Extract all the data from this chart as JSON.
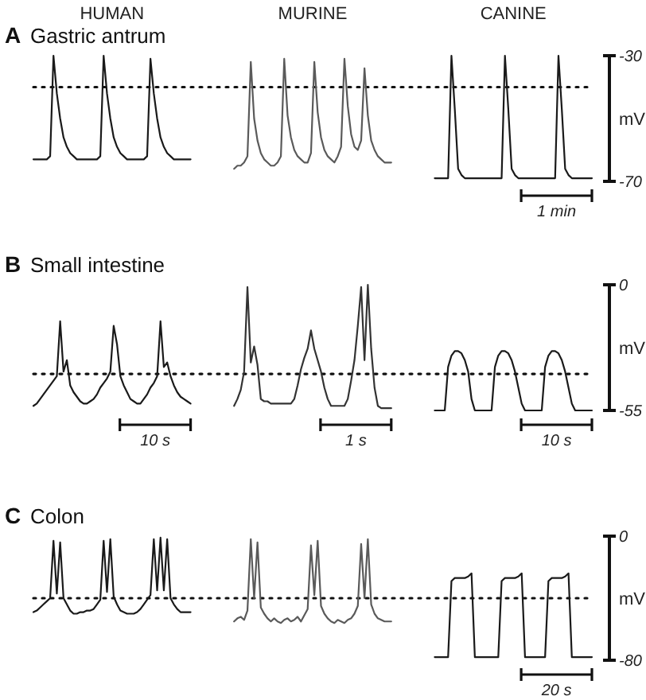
{
  "chart_data": [
    {
      "type": "line",
      "title": "Gastric antrum",
      "annotations": [
        "A",
        "1 min"
      ],
      "ylabel": "mV",
      "ylim": [
        -70,
        -30
      ],
      "yticks": [
        -30,
        -70
      ],
      "ref_lines": [
        {
          "axis": "y",
          "value": -40,
          "line_style": "dotted"
        }
      ],
      "categories": [
        null,
        null,
        null,
        null,
        null,
        null,
        null,
        null,
        null,
        null,
        null,
        null,
        null,
        null,
        null,
        null,
        null,
        null,
        null,
        null,
        null,
        null,
        null,
        null,
        null,
        null,
        null,
        null,
        null,
        null,
        null,
        null,
        null,
        null,
        null,
        null,
        null,
        null,
        null,
        null,
        null,
        null,
        null,
        null,
        null,
        null,
        null,
        null,
        null,
        null,
        null,
        null,
        null,
        null,
        null,
        null,
        null,
        null,
        null,
        null,
        null,
        null,
        null,
        null,
        null,
        null,
        null,
        null,
        null,
        null,
        null,
        null,
        null,
        null,
        null,
        null,
        null,
        null,
        null,
        null,
        null,
        null,
        null,
        null,
        null,
        null,
        null,
        null,
        null,
        null,
        null,
        null,
        null,
        null,
        null,
        null,
        null,
        null,
        null,
        null,
        null,
        null,
        null,
        null,
        null,
        null,
        null,
        null,
        null,
        null,
        null,
        null,
        null,
        null,
        null,
        null,
        null,
        null,
        null,
        null,
        null,
        null,
        null,
        null,
        null,
        null,
        null,
        null,
        null,
        null,
        null,
        null,
        null,
        null,
        null,
        null,
        null,
        null,
        null,
        null,
        null,
        null,
        null,
        null,
        null,
        null,
        null,
        null,
        null,
        null,
        null,
        null,
        null,
        null,
        null,
        null,
        null,
        null,
        null,
        null,
        null,
        null,
        null,
        null,
        null,
        null,
        null,
        null
      ],
      "series": [
        {
          "name": "HUMAN",
          "color": "#1a1a1a",
          "values": [
            -63,
            -63,
            -63,
            -63,
            -63,
            -62,
            -30,
            -42,
            -50,
            -56,
            -59,
            -61,
            -62,
            -63,
            -63,
            -63,
            -63,
            -63,
            -63,
            -63,
            -62,
            -30,
            -42,
            -50,
            -56,
            -59,
            -61,
            -62,
            -63,
            -63,
            -63,
            -63,
            -63,
            -63,
            -62,
            -31,
            -42,
            -50,
            -56,
            -59,
            -61,
            -62,
            -63,
            -63,
            -63,
            -63,
            -63,
            -63,
            null,
            null,
            null,
            null,
            null,
            null,
            null,
            null,
            null,
            null,
            null,
            null,
            null,
            null,
            null,
            null,
            null,
            null,
            null,
            null,
            null,
            null,
            null,
            null,
            null,
            null,
            null,
            null,
            null,
            null,
            null,
            null,
            null,
            null,
            null,
            null,
            null,
            null,
            null,
            null,
            null,
            null,
            null,
            null,
            null,
            null,
            null,
            null,
            null,
            null,
            null,
            null,
            null,
            null,
            null,
            null,
            null,
            null,
            null,
            null,
            null,
            null,
            null,
            null,
            null,
            null,
            null,
            null,
            null,
            null,
            null,
            null,
            null,
            null,
            null,
            null,
            null,
            null,
            null,
            null,
            null,
            null,
            null,
            null,
            null,
            null,
            null,
            null,
            null,
            null,
            null,
            null,
            null,
            null,
            null,
            null,
            null,
            null,
            null,
            null,
            null,
            null,
            null,
            null,
            null,
            null,
            null,
            null,
            null,
            null,
            null,
            null,
            null,
            null,
            null,
            null,
            null,
            null,
            null,
            null
          ]
        },
        {
          "name": "MURINE",
          "color": "#5a5a5a",
          "values": [
            null,
            null,
            null,
            null,
            null,
            null,
            null,
            null,
            null,
            null,
            null,
            null,
            null,
            null,
            null,
            null,
            null,
            null,
            null,
            null,
            null,
            null,
            null,
            null,
            null,
            null,
            null,
            null,
            null,
            null,
            null,
            null,
            null,
            null,
            null,
            null,
            null,
            null,
            null,
            null,
            null,
            null,
            null,
            null,
            null,
            null,
            null,
            null,
            null,
            null,
            null,
            null,
            null,
            null,
            null,
            null,
            null,
            null,
            null,
            null,
            -66,
            -65,
            -65,
            -64,
            -62,
            -32,
            -50,
            -57,
            -61,
            -63,
            -64,
            -65,
            -65,
            -64,
            -62,
            -31,
            -49,
            -56,
            -60,
            -62,
            -63,
            -64,
            -64,
            -61,
            -32,
            -48,
            -56,
            -60,
            -62,
            -63,
            -64,
            -62,
            -59,
            -31,
            -46,
            -55,
            -59,
            -60,
            -57,
            -34,
            -49,
            -57,
            -60,
            -62,
            -63,
            -64,
            -64,
            -64,
            null,
            null,
            null,
            null,
            null,
            null,
            null,
            null,
            null,
            null,
            null,
            null,
            null,
            null,
            null,
            null,
            null,
            null,
            null,
            null,
            null,
            null,
            null,
            null,
            null,
            null,
            null,
            null,
            null,
            null,
            null,
            null,
            null,
            null,
            null,
            null,
            null,
            null,
            null,
            null,
            null,
            null,
            null,
            null,
            null,
            null,
            null,
            null,
            null,
            null,
            null,
            null,
            null,
            null,
            null,
            null,
            null,
            null,
            null,
            null
          ]
        },
        {
          "name": "CANINE",
          "color": "#1a1a1a",
          "values": [
            null,
            null,
            null,
            null,
            null,
            null,
            null,
            null,
            null,
            null,
            null,
            null,
            null,
            null,
            null,
            null,
            null,
            null,
            null,
            null,
            null,
            null,
            null,
            null,
            null,
            null,
            null,
            null,
            null,
            null,
            null,
            null,
            null,
            null,
            null,
            null,
            null,
            null,
            null,
            null,
            null,
            null,
            null,
            null,
            null,
            null,
            null,
            null,
            null,
            null,
            null,
            null,
            null,
            null,
            null,
            null,
            null,
            null,
            null,
            null,
            null,
            null,
            null,
            null,
            null,
            null,
            null,
            null,
            null,
            null,
            null,
            null,
            null,
            null,
            null,
            null,
            null,
            null,
            null,
            null,
            null,
            null,
            null,
            null,
            null,
            null,
            null,
            null,
            null,
            null,
            null,
            null,
            null,
            null,
            null,
            null,
            null,
            null,
            null,
            null,
            null,
            null,
            null,
            null,
            null,
            null,
            null,
            null,
            null,
            null,
            null,
            null,
            null,
            null,
            null,
            null,
            null,
            null,
            null,
            null,
            -69,
            -69,
            -69,
            -69,
            -69,
            -30,
            -47,
            -66,
            -68,
            -69,
            -69,
            -69,
            -69,
            -69,
            -69,
            -69,
            -69,
            -69,
            -69,
            -69,
            -69,
            -30,
            -47,
            -66,
            -68,
            -69,
            -69,
            -69,
            -69,
            -69,
            -69,
            -69,
            -69,
            -69,
            -69,
            -69,
            -69,
            -30,
            -47,
            -66,
            -68,
            -69,
            -69,
            -69,
            -69,
            -69,
            -69,
            -69
          ]
        }
      ]
    },
    {
      "type": "line",
      "title": "Small intestine",
      "annotations": [
        "B",
        "10 s",
        "1 s",
        "10 s"
      ],
      "ylabel": "mV",
      "ylim": [
        -55,
        0
      ],
      "yticks": [
        0,
        -55
      ],
      "ref_lines": [
        {
          "axis": "y",
          "value": -39,
          "line_style": "dotted"
        }
      ],
      "categories": [
        null,
        null,
        null,
        null,
        null,
        null,
        null,
        null,
        null,
        null,
        null,
        null,
        null,
        null,
        null,
        null,
        null,
        null,
        null,
        null,
        null,
        null,
        null,
        null,
        null,
        null,
        null,
        null,
        null,
        null,
        null,
        null,
        null,
        null,
        null,
        null,
        null,
        null,
        null,
        null,
        null,
        null,
        null,
        null,
        null,
        null,
        null,
        null,
        null,
        null,
        null,
        null,
        null,
        null,
        null,
        null,
        null,
        null,
        null,
        null,
        null,
        null,
        null,
        null,
        null,
        null,
        null,
        null,
        null,
        null,
        null,
        null,
        null,
        null,
        null,
        null,
        null,
        null,
        null,
        null,
        null,
        null,
        null,
        null,
        null,
        null,
        null,
        null,
        null,
        null,
        null,
        null,
        null,
        null,
        null,
        null,
        null,
        null,
        null,
        null,
        null,
        null,
        null,
        null,
        null,
        null,
        null,
        null,
        null,
        null,
        null,
        null,
        null,
        null,
        null,
        null,
        null,
        null,
        null,
        null,
        null,
        null,
        null,
        null,
        null,
        null,
        null,
        null,
        null,
        null,
        null,
        null,
        null,
        null,
        null,
        null,
        null,
        null,
        null,
        null,
        null,
        null,
        null,
        null,
        null,
        null,
        null,
        null,
        null,
        null,
        null,
        null,
        null,
        null,
        null,
        null,
        null,
        null,
        null,
        null,
        null,
        null,
        null,
        null,
        null,
        null,
        null,
        null
      ],
      "series": [
        {
          "color": "#1a1a1a",
          "values": [
            -53,
            -52,
            -50,
            -48,
            -46,
            -44,
            -42,
            -40,
            -16,
            -38,
            -33,
            -44,
            -47,
            -49,
            -51,
            -52,
            -52,
            -51,
            -50,
            -48,
            -45,
            -43,
            -41,
            -38,
            -18,
            -26,
            -40,
            -44,
            -47,
            -50,
            -51,
            -52,
            -52,
            -50,
            -48,
            -45,
            -43,
            -40,
            -16,
            -36,
            -34,
            -40,
            -44,
            -47,
            -49,
            -50,
            -51,
            -52,
            null,
            null,
            null,
            null,
            null,
            null,
            null,
            null,
            null,
            null,
            null,
            null,
            null,
            null,
            null,
            null,
            null,
            null,
            null,
            null,
            null,
            null,
            null,
            null,
            null,
            null,
            null,
            null,
            null,
            null,
            null,
            null,
            null,
            null,
            null,
            null,
            null,
            null,
            null,
            null,
            null,
            null,
            null,
            null,
            null,
            null,
            null,
            null,
            null,
            null,
            null,
            null,
            null,
            null,
            null,
            null,
            null,
            null,
            null,
            null,
            null,
            null,
            null,
            null,
            null,
            null,
            null,
            null,
            null,
            null,
            null,
            null,
            null,
            null,
            null,
            null,
            null,
            null,
            null,
            null,
            null,
            null,
            null,
            null,
            null,
            null,
            null,
            null,
            null,
            null,
            null,
            null,
            null,
            null,
            null,
            null,
            null,
            null,
            null,
            null,
            null,
            null,
            null,
            null,
            null,
            null,
            null,
            null,
            null,
            null,
            null,
            null,
            null,
            null,
            null,
            null,
            null,
            null,
            null,
            null
          ]
        },
        {
          "color": "#333333",
          "values": [
            null,
            null,
            null,
            null,
            null,
            null,
            null,
            null,
            null,
            null,
            null,
            null,
            null,
            null,
            null,
            null,
            null,
            null,
            null,
            null,
            null,
            null,
            null,
            null,
            null,
            null,
            null,
            null,
            null,
            null,
            null,
            null,
            null,
            null,
            null,
            null,
            null,
            null,
            null,
            null,
            null,
            null,
            null,
            null,
            null,
            null,
            null,
            null,
            null,
            null,
            null,
            null,
            null,
            null,
            null,
            null,
            null,
            null,
            null,
            null,
            -53,
            -50,
            -46,
            -38,
            -1,
            -34,
            -27,
            -35,
            -50,
            -51,
            -51,
            -52,
            -52,
            -52,
            -52,
            -52,
            -52,
            -52,
            -50,
            -44,
            -37,
            -32,
            -28,
            -20,
            -28,
            -33,
            -38,
            -45,
            -50,
            -53,
            -53,
            -53,
            -53,
            -53,
            -50,
            -42,
            -33,
            -18,
            -1,
            -33,
            0,
            -28,
            -45,
            -53,
            -54,
            -54,
            -54,
            -54,
            null,
            null,
            null,
            null,
            null,
            null,
            null,
            null,
            null,
            null,
            null,
            null,
            null,
            null,
            null,
            null,
            null,
            null,
            null,
            null,
            null,
            null,
            null,
            null,
            null,
            null,
            null,
            null,
            null,
            null,
            null,
            null,
            null,
            null,
            null,
            null,
            null,
            null,
            null,
            null,
            null,
            null,
            null,
            null,
            null,
            null,
            null,
            null,
            null,
            null,
            null,
            null,
            null,
            null,
            null,
            null,
            null,
            null,
            null,
            null
          ]
        },
        {
          "color": "#1a1a1a",
          "values": [
            null,
            null,
            null,
            null,
            null,
            null,
            null,
            null,
            null,
            null,
            null,
            null,
            null,
            null,
            null,
            null,
            null,
            null,
            null,
            null,
            null,
            null,
            null,
            null,
            null,
            null,
            null,
            null,
            null,
            null,
            null,
            null,
            null,
            null,
            null,
            null,
            null,
            null,
            null,
            null,
            null,
            null,
            null,
            null,
            null,
            null,
            null,
            null,
            null,
            null,
            null,
            null,
            null,
            null,
            null,
            null,
            null,
            null,
            null,
            null,
            null,
            null,
            null,
            null,
            null,
            null,
            null,
            null,
            null,
            null,
            null,
            null,
            null,
            null,
            null,
            null,
            null,
            null,
            null,
            null,
            null,
            null,
            null,
            null,
            null,
            null,
            null,
            null,
            null,
            null,
            null,
            null,
            null,
            null,
            null,
            null,
            null,
            null,
            null,
            null,
            null,
            null,
            null,
            null,
            null,
            null,
            null,
            null,
            null,
            null,
            null,
            null,
            null,
            null,
            null,
            null,
            null,
            null,
            null,
            null,
            -55,
            -55,
            -55,
            -55,
            -36,
            -31,
            -29,
            -29,
            -30,
            -33,
            -38,
            -50,
            -55,
            -55,
            -55,
            -55,
            -55,
            -55,
            -36,
            -31,
            -29,
            -29,
            -30,
            -33,
            -38,
            -45,
            -52,
            -55,
            -55,
            -55,
            -55,
            -55,
            -55,
            -36,
            -31,
            -29,
            -29,
            -30,
            -33,
            -38,
            -45,
            -52,
            -55,
            -55,
            -55,
            -55,
            -55,
            -55
          ]
        }
      ]
    },
    {
      "type": "line",
      "title": "Colon",
      "annotations": [
        "C",
        "20 s"
      ],
      "ylabel": "mV",
      "ylim": [
        -80,
        0
      ],
      "yticks": [
        0,
        -80
      ],
      "ref_lines": [
        {
          "axis": "y",
          "value": -40,
          "line_style": "dotted"
        }
      ],
      "categories": [
        null,
        null,
        null,
        null,
        null,
        null,
        null,
        null,
        null,
        null,
        null,
        null,
        null,
        null,
        null,
        null,
        null,
        null,
        null,
        null,
        null,
        null,
        null,
        null,
        null,
        null,
        null,
        null,
        null,
        null,
        null,
        null,
        null,
        null,
        null,
        null,
        null,
        null,
        null,
        null,
        null,
        null,
        null,
        null,
        null,
        null,
        null,
        null,
        null,
        null,
        null,
        null,
        null,
        null,
        null,
        null,
        null,
        null,
        null,
        null,
        null,
        null,
        null,
        null,
        null,
        null,
        null,
        null,
        null,
        null,
        null,
        null,
        null,
        null,
        null,
        null,
        null,
        null,
        null,
        null,
        null,
        null,
        null,
        null,
        null,
        null,
        null,
        null,
        null,
        null,
        null,
        null,
        null,
        null,
        null,
        null,
        null,
        null,
        null,
        null,
        null,
        null,
        null,
        null,
        null,
        null,
        null,
        null,
        null,
        null,
        null,
        null,
        null,
        null,
        null,
        null,
        null,
        null,
        null,
        null,
        null,
        null,
        null,
        null,
        null,
        null,
        null,
        null,
        null,
        null,
        null,
        null,
        null,
        null,
        null,
        null,
        null,
        null,
        null,
        null,
        null,
        null,
        null,
        null,
        null,
        null,
        null,
        null,
        null,
        null,
        null,
        null,
        null,
        null,
        null,
        null,
        null,
        null,
        null,
        null,
        null,
        null,
        null,
        null,
        null,
        null,
        null,
        null
      ],
      "series": [
        {
          "color": "#1a1a1a",
          "values": [
            -49,
            -48,
            -46,
            -44,
            -42,
            -40,
            -3,
            -37,
            -4,
            -40,
            -44,
            -48,
            -50,
            -50,
            -49,
            -49,
            -48,
            -48,
            -47,
            -44,
            -41,
            -3,
            -36,
            -2,
            -39,
            -44,
            -48,
            -49,
            -50,
            -50,
            -50,
            -49,
            -47,
            -44,
            -41,
            -38,
            -2,
            -35,
            -1,
            -35,
            -2,
            -40,
            -44,
            -47,
            -49,
            -49,
            -49,
            -49,
            null,
            null,
            null,
            null,
            null,
            null,
            null,
            null,
            null,
            null,
            null,
            null,
            null,
            null,
            null,
            null,
            null,
            null,
            null,
            null,
            null,
            null,
            null,
            null,
            null,
            null,
            null,
            null,
            null,
            null,
            null,
            null,
            null,
            null,
            null,
            null,
            null,
            null,
            null,
            null,
            null,
            null,
            null,
            null,
            null,
            null,
            null,
            null,
            null,
            null,
            null,
            null,
            null,
            null,
            null,
            null,
            null,
            null,
            null,
            null,
            null,
            null,
            null,
            null,
            null,
            null,
            null,
            null,
            null,
            null,
            null,
            null,
            null,
            null,
            null,
            null,
            null,
            null,
            null,
            null,
            null,
            null,
            null,
            null,
            null,
            null,
            null,
            null,
            null,
            null,
            null,
            null,
            null,
            null,
            null,
            null,
            null,
            null,
            null,
            null,
            null,
            null,
            null,
            null,
            null,
            null,
            null,
            null,
            null,
            null,
            null,
            null,
            null,
            null,
            null,
            null,
            null,
            null,
            null,
            null
          ]
        },
        {
          "color": "#5a5a5a",
          "values": [
            null,
            null,
            null,
            null,
            null,
            null,
            null,
            null,
            null,
            null,
            null,
            null,
            null,
            null,
            null,
            null,
            null,
            null,
            null,
            null,
            null,
            null,
            null,
            null,
            null,
            null,
            null,
            null,
            null,
            null,
            null,
            null,
            null,
            null,
            null,
            null,
            null,
            null,
            null,
            null,
            null,
            null,
            null,
            null,
            null,
            null,
            null,
            null,
            null,
            null,
            null,
            null,
            null,
            null,
            null,
            null,
            null,
            null,
            null,
            null,
            -55,
            -53,
            -52,
            -54,
            -48,
            -2,
            -40,
            -4,
            -46,
            -50,
            -53,
            -55,
            -53,
            -55,
            -56,
            -54,
            -53,
            -55,
            -54,
            -52,
            -55,
            -51,
            -47,
            -6,
            -38,
            -3,
            -45,
            -50,
            -53,
            -55,
            -56,
            -54,
            -55,
            -56,
            -54,
            -53,
            -50,
            -45,
            -5,
            -40,
            -2,
            -44,
            -50,
            -53,
            -54,
            -55,
            -55,
            -55,
            null,
            null,
            null,
            null,
            null,
            null,
            null,
            null,
            null,
            null,
            null,
            null,
            null,
            null,
            null,
            null,
            null,
            null,
            null,
            null,
            null,
            null,
            null,
            null,
            null,
            null,
            null,
            null,
            null,
            null,
            null,
            null,
            null,
            null,
            null,
            null,
            null,
            null,
            null,
            null,
            null,
            null,
            null,
            null,
            null,
            null,
            null,
            null,
            null,
            null,
            null,
            null,
            null,
            null,
            null,
            null,
            null,
            null,
            null,
            null
          ]
        },
        {
          "color": "#1a1a1a",
          "values": [
            null,
            null,
            null,
            null,
            null,
            null,
            null,
            null,
            null,
            null,
            null,
            null,
            null,
            null,
            null,
            null,
            null,
            null,
            null,
            null,
            null,
            null,
            null,
            null,
            null,
            null,
            null,
            null,
            null,
            null,
            null,
            null,
            null,
            null,
            null,
            null,
            null,
            null,
            null,
            null,
            null,
            null,
            null,
            null,
            null,
            null,
            null,
            null,
            null,
            null,
            null,
            null,
            null,
            null,
            null,
            null,
            null,
            null,
            null,
            null,
            null,
            null,
            null,
            null,
            null,
            null,
            null,
            null,
            null,
            null,
            null,
            null,
            null,
            null,
            null,
            null,
            null,
            null,
            null,
            null,
            null,
            null,
            null,
            null,
            null,
            null,
            null,
            null,
            null,
            null,
            null,
            null,
            null,
            null,
            null,
            null,
            null,
            null,
            null,
            null,
            null,
            null,
            null,
            null,
            null,
            null,
            null,
            null,
            null,
            null,
            null,
            null,
            null,
            null,
            null,
            null,
            null,
            null,
            null,
            null,
            -78,
            -78,
            -78,
            -78,
            -78,
            -29,
            -27,
            -27,
            -27,
            -27,
            -26,
            -24,
            -78,
            -78,
            -78,
            -78,
            -78,
            -78,
            -78,
            -78,
            -29,
            -27,
            -27,
            -27,
            -27,
            -26,
            -24,
            -78,
            -78,
            -78,
            -78,
            -78,
            -78,
            -78,
            -29,
            -27,
            -27,
            -27,
            -27,
            -26,
            -24,
            -78,
            -78,
            -78,
            -78,
            -78,
            -78,
            -78
          ]
        }
      ]
    }
  ]
}
